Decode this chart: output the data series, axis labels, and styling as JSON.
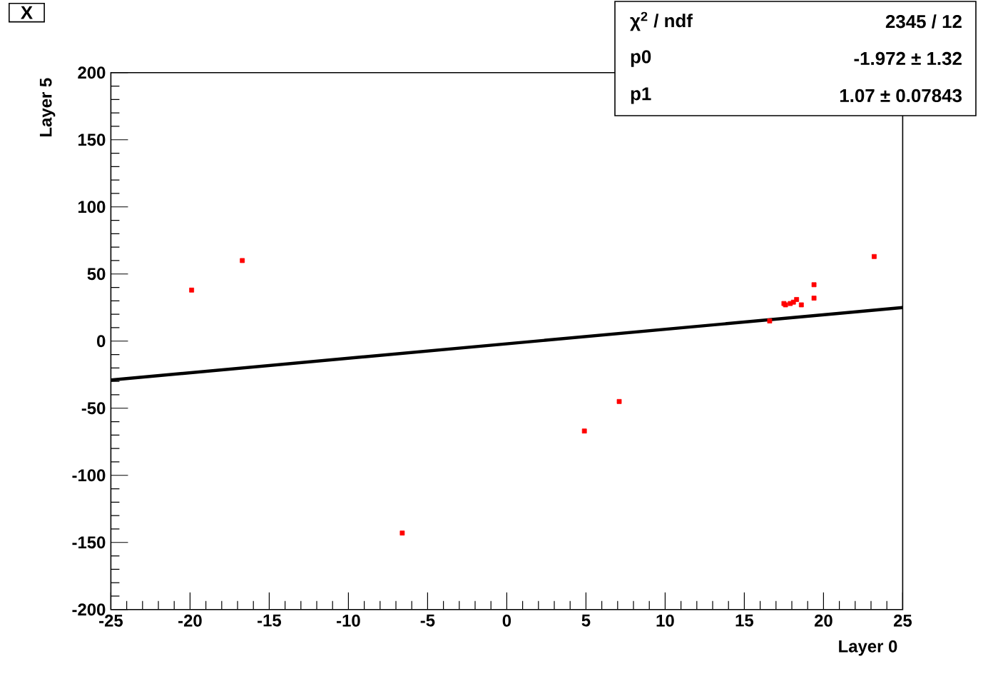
{
  "chart_data": {
    "type": "scatter",
    "title": "X",
    "xlabel": "Layer 0",
    "ylabel": "Layer 5",
    "xlim": [
      -25,
      25
    ],
    "ylim": [
      -200,
      200
    ],
    "xticks": [
      -25,
      -20,
      -15,
      -10,
      -5,
      0,
      5,
      10,
      15,
      20,
      25
    ],
    "yticks": [
      -200,
      -150,
      -100,
      -50,
      0,
      50,
      100,
      150,
      200
    ],
    "grid": false,
    "series": [
      {
        "type": "scatter",
        "color": "#ff0000",
        "marker": "square",
        "x": [
          -19.9,
          -16.7,
          -6.6,
          4.9,
          7.1,
          16.6,
          17.5,
          17.6,
          17.9,
          18.1,
          18.3,
          18.6,
          19.4,
          19.4,
          23.2
        ],
        "values": [
          38,
          60,
          -143,
          -67,
          -45,
          15,
          28,
          27,
          28,
          29,
          31,
          27,
          42,
          32,
          63
        ]
      },
      {
        "type": "line",
        "color": "#000000",
        "marker": "none",
        "x": [
          -25,
          25
        ],
        "values": [
          -29,
          25
        ]
      }
    ],
    "annotations": [
      "χ$^{2}$ / ndf",
      "2345 / 12",
      "p0",
      "-1.972 ± 1.32",
      "p1",
      "1.07 ± 0.07843"
    ]
  }
}
